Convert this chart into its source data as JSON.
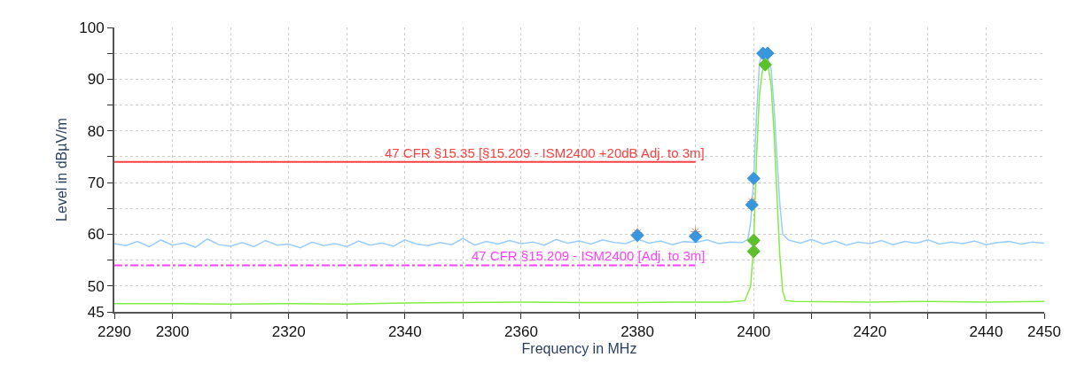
{
  "chart_data": {
    "type": "line",
    "xlabel": "Frequency in MHz",
    "ylabel": "Level in dBµV/m",
    "xlim": [
      2290,
      2450
    ],
    "ylim": [
      45,
      100
    ],
    "xticks": [
      2290,
      2300,
      {
        "value": 2310,
        "label": null
      },
      2320,
      {
        "value": 2330,
        "label": null
      },
      2340,
      {
        "value": 2350,
        "label": null
      },
      2360,
      {
        "value": 2370,
        "label": null
      },
      2380,
      {
        "value": 2390,
        "label": null
      },
      2400,
      {
        "value": 2410,
        "label": null
      },
      2420,
      {
        "value": 2430,
        "label": null
      },
      2440,
      2450
    ],
    "yticks": [
      45,
      50,
      {
        "value": 55,
        "label": null
      },
      60,
      {
        "value": 65,
        "label": null
      },
      70,
      {
        "value": 75,
        "label": null
      },
      80,
      {
        "value": 85,
        "label": null
      },
      90,
      {
        "value": 95,
        "label": null
      },
      100
    ],
    "grid": true,
    "legend": false,
    "series": [
      {
        "color": "#99ccff",
        "marker": "none",
        "x": [
          2290,
          2292,
          2294,
          2296,
          2298,
          2300,
          2302,
          2304,
          2306,
          2308,
          2310,
          2312,
          2314,
          2316,
          2318,
          2320,
          2322,
          2324,
          2326,
          2328,
          2330,
          2332,
          2334,
          2336,
          2338,
          2340,
          2342,
          2344,
          2346,
          2348,
          2350,
          2352,
          2354,
          2356,
          2358,
          2360,
          2362,
          2364,
          2366,
          2368,
          2370,
          2372,
          2374,
          2376,
          2378,
          2380,
          2382,
          2384,
          2386,
          2388,
          2390,
          2392,
          2394,
          2396,
          2398,
          2399,
          2399.5,
          2400,
          2400.5,
          2401,
          2401.5,
          2402,
          2403,
          2403.5,
          2404,
          2404.5,
          2405,
          2406,
          2408,
          2410,
          2412,
          2414,
          2416,
          2418,
          2420,
          2422,
          2424,
          2426,
          2428,
          2430,
          2432,
          2434,
          2436,
          2438,
          2440,
          2442,
          2444,
          2446,
          2448,
          2450
        ],
        "values": [
          58.2,
          57.8,
          58.6,
          57.6,
          58.9,
          57.9,
          58.3,
          57.5,
          59.1,
          58.0,
          57.7,
          58.4,
          57.6,
          58.8,
          57.9,
          58.1,
          57.4,
          58.5,
          57.8,
          58.2,
          57.6,
          58.7,
          57.9,
          58.3,
          57.7,
          58.9,
          58.1,
          57.8,
          58.4,
          58.0,
          59.2,
          57.9,
          58.6,
          58.1,
          58.8,
          58.2,
          58.5,
          57.9,
          59.0,
          58.3,
          58.7,
          58.1,
          58.9,
          58.4,
          58.2,
          59.1,
          58.3,
          58.7,
          58.0,
          58.6,
          58.4,
          58.9,
          58.2,
          58.5,
          58.4,
          59.0,
          62.5,
          70.5,
          83,
          93,
          95.2,
          95.3,
          92,
          85,
          75,
          66,
          60,
          58.9,
          58.3,
          59.0,
          58.1,
          58.7,
          57.9,
          58.5,
          58.2,
          58.8,
          58.0,
          58.6,
          58.3,
          58.9,
          58.1,
          58.5,
          58.2,
          58.7,
          58.0,
          58.4,
          58.6,
          58.1,
          58.5,
          58.3
        ]
      },
      {
        "color": "#80ee40",
        "marker": "none",
        "x": [
          2290,
          2300,
          2310,
          2320,
          2330,
          2340,
          2350,
          2360,
          2370,
          2380,
          2390,
          2396,
          2398.5,
          2399.5,
          2400,
          2400.5,
          2401,
          2401.5,
          2402,
          2402.5,
          2403,
          2403.5,
          2404,
          2404.5,
          2405,
          2405.5,
          2407,
          2420,
          2430,
          2440,
          2450
        ],
        "values": [
          46.6,
          46.6,
          46.5,
          46.6,
          46.5,
          46.7,
          46.8,
          46.9,
          46.8,
          46.8,
          46.9,
          46.9,
          47.2,
          50,
          58,
          75,
          87,
          91.5,
          92.7,
          92.5,
          89,
          80,
          68,
          56,
          49,
          47.2,
          47.0,
          46.9,
          47.0,
          46.9,
          47.0
        ]
      },
      {
        "name": "47 CFR §15.35 [§15.209 - ISM2400 +20dB Adj. to 3m]",
        "color": "#ff4040",
        "marker": "none",
        "line_style": "solid",
        "x": [
          2290,
          2390
        ],
        "values": [
          74,
          74
        ]
      },
      {
        "name": "47 CFR §15.209 - ISM2400 [Adj. to 3m]",
        "color": "#ff40ff",
        "marker": "none",
        "line_style": "dotted",
        "x": [
          2290,
          2390
        ],
        "values": [
          54,
          54
        ]
      },
      {
        "type": "scatter",
        "color": "#ff8040",
        "marker": "cross",
        "x": [
          2380,
          2390,
          2399.7
        ],
        "values": [
          60.3,
          60.5,
          66.3
        ]
      },
      {
        "type": "scatter",
        "color": "#3a96dc",
        "marker": "diamond",
        "x": [
          2380,
          2390,
          2399.7,
          2400,
          2401.6,
          2402.4
        ],
        "values": [
          59.8,
          59.6,
          65.7,
          70.8,
          95,
          95
        ]
      },
      {
        "type": "scatter",
        "color": "#5cc02c",
        "marker": "diamond",
        "x": [
          2400,
          2400,
          2402
        ],
        "values": [
          58.8,
          56.7,
          92.8
        ]
      }
    ]
  }
}
